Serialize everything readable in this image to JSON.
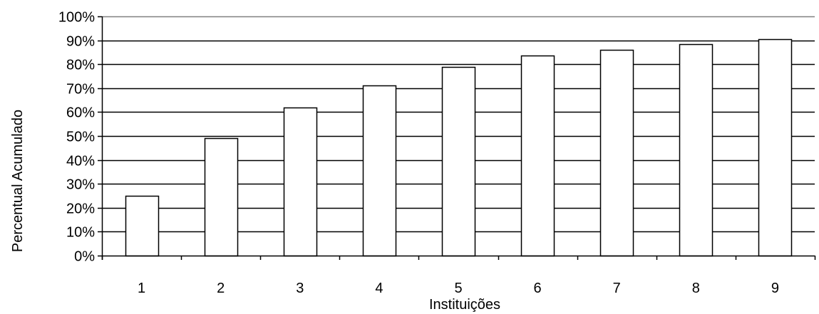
{
  "chart_data": {
    "type": "bar",
    "categories": [
      "1",
      "2",
      "3",
      "4",
      "5",
      "6",
      "7",
      "8",
      "9"
    ],
    "values": [
      25,
      49,
      62,
      71,
      79,
      83.5,
      86,
      88.5,
      90.5
    ],
    "xlabel": "Instituições",
    "ylabel": "Percentual Acumulado",
    "ylim": [
      0,
      100
    ],
    "yticks": [
      "0%",
      "10%",
      "20%",
      "30%",
      "40%",
      "50%",
      "60%",
      "70%",
      "80%",
      "90%",
      "100%"
    ],
    "grid": true,
    "legend": "none",
    "colors": {
      "bar_fill": "#ffffff",
      "bar_stroke": "#000000",
      "grid": "#000000",
      "top_border": "#808080"
    }
  }
}
